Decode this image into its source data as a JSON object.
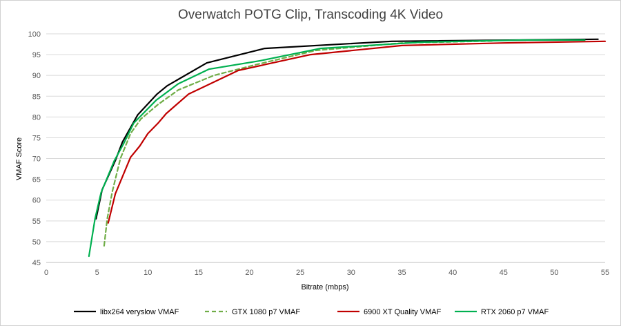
{
  "chart_data": {
    "type": "line",
    "title": "Overwatch POTG Clip, Transcoding 4K Video",
    "xlabel": "Bitrate (mbps)",
    "ylabel": "VMAF Score",
    "xlim": [
      0,
      55
    ],
    "ylim": [
      45,
      100
    ],
    "xticks": [
      0,
      5,
      10,
      15,
      20,
      25,
      30,
      35,
      40,
      45,
      50,
      55
    ],
    "yticks": [
      45,
      50,
      55,
      60,
      65,
      70,
      75,
      80,
      85,
      90,
      95,
      100
    ],
    "grid": "horizontal",
    "legend_position": "bottom",
    "series": [
      {
        "name": "libx264 veryslow VMAF",
        "color": "#000000",
        "dash": "solid",
        "points": [
          [
            4.9,
            55.5
          ],
          [
            5.5,
            62.5
          ],
          [
            6.8,
            69.5
          ],
          [
            7.5,
            74
          ],
          [
            9.0,
            80.5
          ],
          [
            10.9,
            85.5
          ],
          [
            11.9,
            87.5
          ],
          [
            15.8,
            93
          ],
          [
            21.5,
            96.5
          ],
          [
            34,
            98.2
          ],
          [
            54.3,
            98.7
          ]
        ]
      },
      {
        "name": "GTX 1080 p7 VMAF",
        "color": "#70AD47",
        "dash": "dashed",
        "points": [
          [
            5.7,
            49
          ],
          [
            6.0,
            55.5
          ],
          [
            6.5,
            62
          ],
          [
            7.3,
            70
          ],
          [
            8.3,
            76
          ],
          [
            9.3,
            79.5
          ],
          [
            11.0,
            83
          ],
          [
            13.0,
            86.5
          ],
          [
            16.5,
            90
          ],
          [
            20.5,
            92.5
          ],
          [
            26.5,
            96
          ],
          [
            35,
            97.8
          ],
          [
            44,
            98.3
          ]
        ]
      },
      {
        "name": "6900 XT Quality VMAF",
        "color": "#C00000",
        "dash": "solid",
        "points": [
          [
            6.1,
            54.5
          ],
          [
            6.8,
            61.5
          ],
          [
            8.3,
            70.3
          ],
          [
            9.2,
            73
          ],
          [
            10.0,
            76
          ],
          [
            11.0,
            78.5
          ],
          [
            11.8,
            80.8
          ],
          [
            14.0,
            85.5
          ],
          [
            18.9,
            91.2
          ],
          [
            26.0,
            95
          ],
          [
            35,
            97.2
          ],
          [
            45,
            97.8
          ],
          [
            55,
            98.2
          ]
        ]
      },
      {
        "name": "RTX 2060 p7 VMAF",
        "color": "#00B050",
        "dash": "solid",
        "points": [
          [
            4.2,
            46.5
          ],
          [
            4.8,
            55.5
          ],
          [
            5.4,
            61.8
          ],
          [
            6.7,
            69.5
          ],
          [
            7.6,
            73.5
          ],
          [
            8.6,
            78.5
          ],
          [
            10.8,
            84
          ],
          [
            13.0,
            88
          ],
          [
            16.0,
            91.5
          ],
          [
            21.0,
            93.5
          ],
          [
            27.0,
            96.5
          ],
          [
            37,
            98
          ],
          [
            47,
            98.5
          ],
          [
            53,
            98.5
          ]
        ]
      }
    ]
  }
}
